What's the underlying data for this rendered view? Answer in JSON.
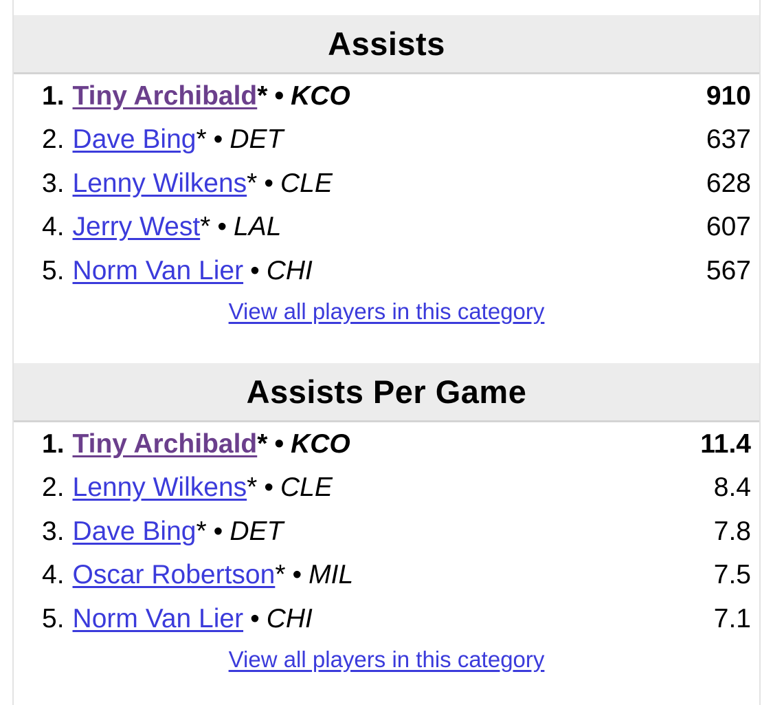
{
  "sections": [
    {
      "title": "Assists",
      "leaders": [
        {
          "rank": "1.",
          "player": "Tiny Archibald",
          "hof": "*",
          "team": "KCO",
          "value": "910"
        },
        {
          "rank": "2.",
          "player": "Dave Bing",
          "hof": "*",
          "team": "DET",
          "value": "637"
        },
        {
          "rank": "3.",
          "player": "Lenny Wilkens",
          "hof": "*",
          "team": "CLE",
          "value": "628"
        },
        {
          "rank": "4.",
          "player": "Jerry West",
          "hof": "*",
          "team": "LAL",
          "value": "607"
        },
        {
          "rank": "5.",
          "player": "Norm Van Lier",
          "hof": "",
          "team": "CHI",
          "value": "567"
        }
      ],
      "view_all": "View all players in this category"
    },
    {
      "title": "Assists Per Game",
      "leaders": [
        {
          "rank": "1.",
          "player": "Tiny Archibald",
          "hof": "*",
          "team": "KCO",
          "value": "11.4"
        },
        {
          "rank": "2.",
          "player": "Lenny Wilkens",
          "hof": "*",
          "team": "CLE",
          "value": "8.4"
        },
        {
          "rank": "3.",
          "player": "Dave Bing",
          "hof": "*",
          "team": "DET",
          "value": "7.8"
        },
        {
          "rank": "4.",
          "player": "Oscar Robertson",
          "hof": "*",
          "team": "MIL",
          "value": "7.5"
        },
        {
          "rank": "5.",
          "player": "Norm Van Lier",
          "hof": "",
          "team": "CHI",
          "value": "7.1"
        }
      ],
      "view_all": "View all players in this category"
    }
  ],
  "separator": "•",
  "colors": {
    "link": "#3b3bdb",
    "visited_link": "#6b3f8c",
    "header_bg": "#ececec",
    "border": "#d4d4d4"
  }
}
